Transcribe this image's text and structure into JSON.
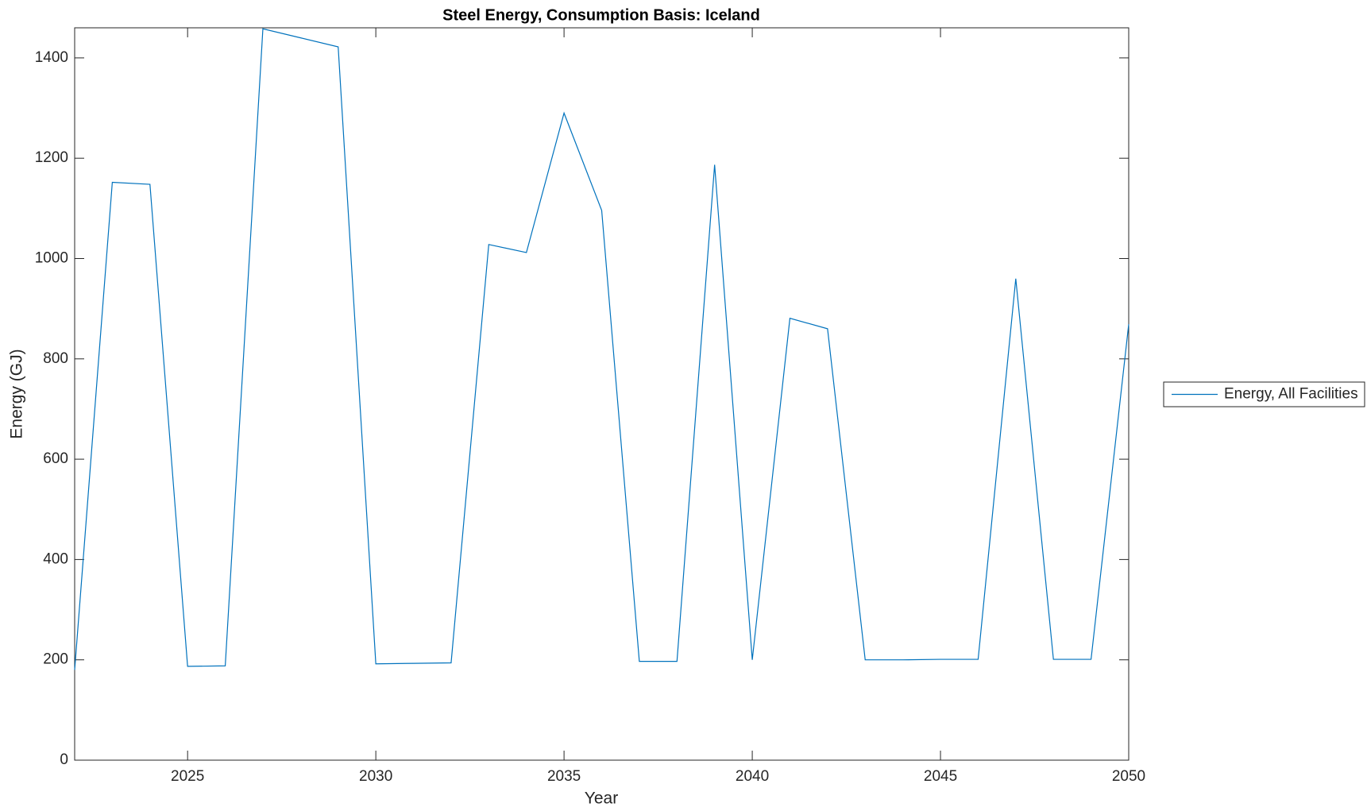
{
  "chart_data": {
    "type": "line",
    "title": "Steel Energy, Consumption Basis: Iceland",
    "x_label": "Year",
    "y_label": "Energy (GJ)",
    "x": [
      2022,
      2023,
      2024,
      2025,
      2026,
      2027,
      2028,
      2029,
      2030,
      2031,
      2032,
      2033,
      2034,
      2035,
      2036,
      2037,
      2038,
      2039,
      2040,
      2041,
      2042,
      2043,
      2044,
      2045,
      2046,
      2047,
      2048,
      2049,
      2050
    ],
    "series": [
      {
        "name": "Energy, All Facilities",
        "color": "#0072bd",
        "values": [
          180,
          1152,
          1148,
          187,
          188,
          1458,
          1440,
          1422,
          192,
          193,
          194,
          1028,
          1012,
          1290,
          1096,
          197,
          197,
          1187,
          200,
          881,
          860,
          200,
          200,
          201,
          201,
          960,
          201,
          201,
          869
        ]
      }
    ],
    "xlim": [
      2022,
      2050
    ],
    "xticks": [
      2025,
      2030,
      2035,
      2040,
      2045,
      2050
    ],
    "ylim": [
      0,
      1460
    ],
    "yticks": [
      0,
      200,
      400,
      600,
      800,
      1000,
      1200,
      1400
    ],
    "grid": false,
    "legend": "outside-right"
  }
}
